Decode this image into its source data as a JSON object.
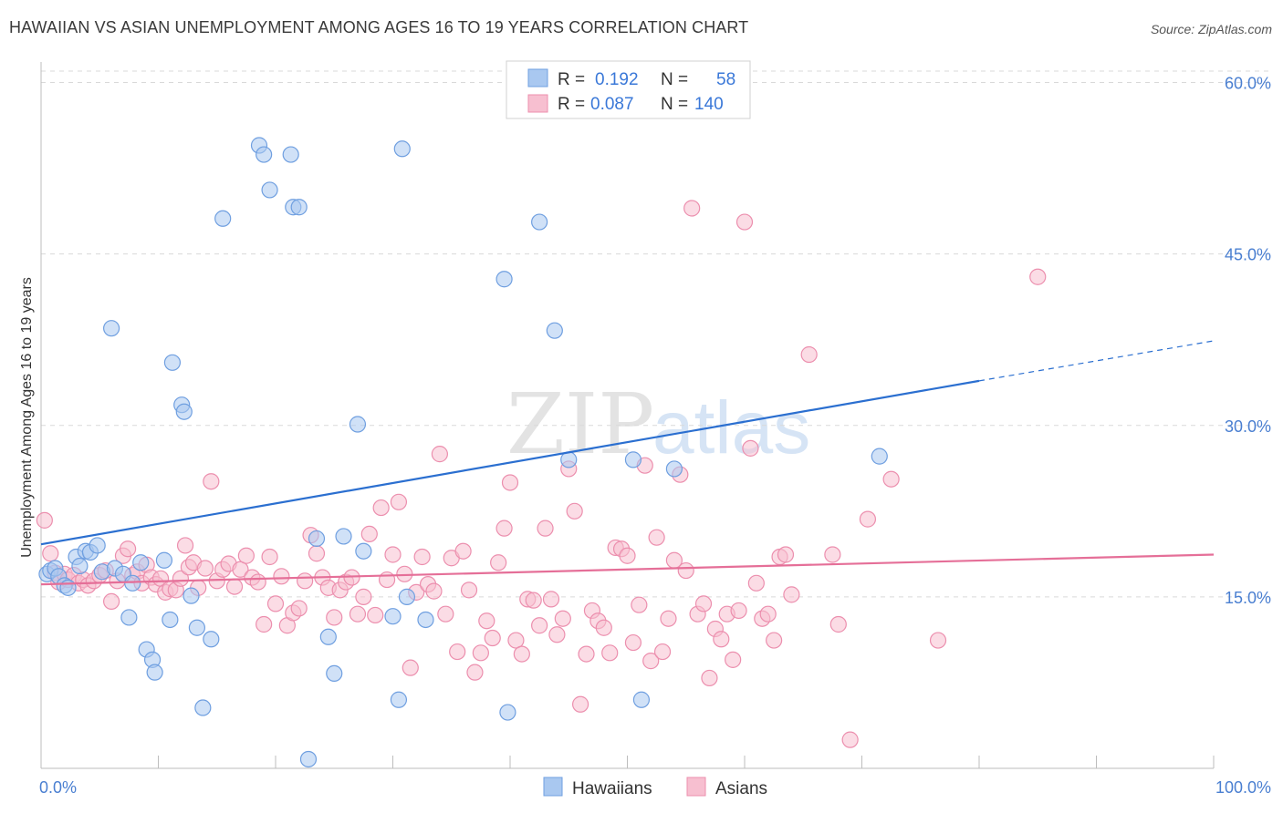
{
  "title": "HAWAIIAN VS ASIAN UNEMPLOYMENT AMONG AGES 16 TO 19 YEARS CORRELATION CHART",
  "source": "Source: ZipAtlas.com",
  "watermark": {
    "zip": "ZIP",
    "atlas": "atlas"
  },
  "colors": {
    "hawaiians_fill": "#a9c8f0",
    "hawaiians_stroke": "#6f9fe0",
    "hawaiians_line": "#2b6fd0",
    "asians_fill": "#f7bfd0",
    "asians_stroke": "#ec8fae",
    "asians_line": "#e56f98",
    "axis_label": "#4a7fd1",
    "grid": "#d9d9d9"
  },
  "legend": {
    "rows": [
      {
        "r_label": "R =",
        "r_value": "0.192",
        "n_label": "N =",
        "n_value": "58"
      },
      {
        "r_label": "R =",
        "r_value": "0.087",
        "n_label": "N =",
        "n_value": "140"
      }
    ]
  },
  "chart_data": {
    "type": "scatter",
    "title": "HAWAIIAN VS ASIAN UNEMPLOYMENT AMONG AGES 16 TO 19 YEARS CORRELATION CHART",
    "xlabel": "",
    "ylabel": "Unemployment Among Ages 16 to 19 years",
    "xlim": [
      0,
      100
    ],
    "ylim": [
      0,
      61
    ],
    "x_tick_labels": [
      "0.0%",
      "100.0%"
    ],
    "y_ticks": [
      15,
      30,
      45,
      60
    ],
    "y_tick_labels": [
      "15.0%",
      "30.0%",
      "45.0%",
      "60.0%"
    ],
    "grid": "horizontal dashed",
    "legend_position": "top-center",
    "series": [
      {
        "name": "Hawaiians",
        "r": 0.192,
        "n": 58,
        "trend": {
          "x0": 0,
          "y0": 19.6,
          "x1": 80,
          "y1": 33.9,
          "dashed_to_x": 100,
          "dashed_to_y": 37.4
        },
        "points": [
          [
            0.5,
            17.0
          ],
          [
            0.8,
            17.3
          ],
          [
            1.2,
            17.5
          ],
          [
            1.5,
            16.8
          ],
          [
            2.0,
            16.0
          ],
          [
            2.3,
            15.8
          ],
          [
            3.0,
            18.5
          ],
          [
            3.3,
            17.7
          ],
          [
            3.8,
            19.0
          ],
          [
            4.2,
            18.9
          ],
          [
            4.8,
            19.5
          ],
          [
            5.2,
            17.2
          ],
          [
            6.0,
            38.5
          ],
          [
            6.3,
            17.5
          ],
          [
            7.0,
            17.0
          ],
          [
            7.5,
            13.2
          ],
          [
            7.8,
            16.2
          ],
          [
            8.5,
            18.0
          ],
          [
            9.0,
            10.4
          ],
          [
            9.5,
            9.5
          ],
          [
            9.7,
            8.4
          ],
          [
            10.5,
            18.2
          ],
          [
            11.0,
            13.0
          ],
          [
            11.2,
            35.5
          ],
          [
            12.0,
            31.8
          ],
          [
            12.2,
            31.2
          ],
          [
            12.8,
            15.1
          ],
          [
            13.3,
            12.3
          ],
          [
            13.8,
            5.3
          ],
          [
            14.5,
            11.3
          ],
          [
            15.5,
            48.1
          ],
          [
            18.6,
            54.5
          ],
          [
            19.0,
            53.7
          ],
          [
            19.5,
            50.6
          ],
          [
            21.3,
            53.7
          ],
          [
            21.5,
            49.1
          ],
          [
            22.0,
            49.1
          ],
          [
            22.8,
            0.8
          ],
          [
            23.5,
            20.1
          ],
          [
            24.5,
            11.5
          ],
          [
            25.0,
            8.3
          ],
          [
            25.8,
            20.3
          ],
          [
            27.0,
            30.1
          ],
          [
            27.5,
            19.0
          ],
          [
            30.0,
            13.3
          ],
          [
            30.5,
            6.0
          ],
          [
            30.8,
            54.2
          ],
          [
            31.2,
            15.0
          ],
          [
            32.8,
            13.0
          ],
          [
            39.5,
            42.8
          ],
          [
            39.8,
            4.9
          ],
          [
            42.5,
            47.8
          ],
          [
            43.8,
            38.3
          ],
          [
            45.0,
            27.0
          ],
          [
            50.5,
            27.0
          ],
          [
            51.2,
            6.0
          ],
          [
            54.0,
            26.2
          ],
          [
            71.5,
            27.3
          ]
        ]
      },
      {
        "name": "Asians",
        "r": 0.087,
        "n": 140,
        "trend": {
          "x0": 0,
          "y0": 16.1,
          "x1": 100,
          "y1": 18.7
        },
        "points": [
          [
            0.3,
            21.7
          ],
          [
            0.8,
            18.8
          ],
          [
            1.2,
            17.1
          ],
          [
            1.5,
            16.3
          ],
          [
            2.0,
            17.0
          ],
          [
            2.3,
            16.5
          ],
          [
            2.8,
            16.9
          ],
          [
            3.2,
            16.2
          ],
          [
            3.6,
            16.5
          ],
          [
            4.0,
            16.0
          ],
          [
            4.5,
            16.4
          ],
          [
            5.0,
            16.9
          ],
          [
            5.5,
            17.3
          ],
          [
            6.0,
            14.6
          ],
          [
            6.5,
            16.4
          ],
          [
            7.0,
            18.6
          ],
          [
            7.4,
            19.2
          ],
          [
            7.8,
            16.9
          ],
          [
            8.2,
            17.2
          ],
          [
            8.6,
            16.2
          ],
          [
            9.0,
            17.8
          ],
          [
            9.4,
            16.7
          ],
          [
            9.8,
            16.1
          ],
          [
            10.2,
            16.6
          ],
          [
            10.6,
            15.4
          ],
          [
            11.0,
            15.7
          ],
          [
            11.5,
            15.6
          ],
          [
            11.9,
            16.6
          ],
          [
            12.3,
            19.5
          ],
          [
            12.6,
            17.6
          ],
          [
            13.0,
            18.0
          ],
          [
            13.4,
            15.8
          ],
          [
            14.0,
            17.5
          ],
          [
            14.5,
            25.1
          ],
          [
            15.0,
            16.4
          ],
          [
            15.5,
            17.4
          ],
          [
            16.0,
            17.9
          ],
          [
            16.5,
            15.9
          ],
          [
            17.0,
            17.4
          ],
          [
            17.5,
            18.6
          ],
          [
            18.0,
            16.7
          ],
          [
            18.5,
            16.3
          ],
          [
            19.0,
            12.6
          ],
          [
            19.5,
            18.5
          ],
          [
            20.0,
            14.4
          ],
          [
            20.5,
            16.8
          ],
          [
            21.0,
            12.5
          ],
          [
            21.5,
            13.6
          ],
          [
            22.0,
            14.0
          ],
          [
            22.5,
            16.4
          ],
          [
            23.0,
            20.4
          ],
          [
            23.5,
            18.8
          ],
          [
            24.0,
            16.7
          ],
          [
            24.5,
            15.8
          ],
          [
            25.0,
            13.2
          ],
          [
            25.5,
            15.6
          ],
          [
            26.0,
            16.3
          ],
          [
            26.5,
            16.7
          ],
          [
            27.0,
            13.5
          ],
          [
            27.5,
            15.0
          ],
          [
            28.0,
            20.5
          ],
          [
            28.5,
            13.4
          ],
          [
            29.0,
            22.8
          ],
          [
            29.5,
            16.5
          ],
          [
            30.0,
            18.7
          ],
          [
            30.5,
            23.3
          ],
          [
            31.0,
            17.0
          ],
          [
            31.5,
            8.8
          ],
          [
            32.0,
            15.4
          ],
          [
            32.5,
            18.5
          ],
          [
            33.0,
            16.1
          ],
          [
            33.5,
            15.5
          ],
          [
            34.0,
            27.5
          ],
          [
            34.5,
            13.5
          ],
          [
            35.0,
            18.4
          ],
          [
            35.5,
            10.2
          ],
          [
            36.0,
            19.0
          ],
          [
            36.5,
            15.6
          ],
          [
            37.0,
            8.4
          ],
          [
            37.5,
            10.1
          ],
          [
            38.0,
            12.9
          ],
          [
            38.5,
            11.4
          ],
          [
            39.0,
            18.0
          ],
          [
            39.5,
            21.0
          ],
          [
            40.0,
            25.0
          ],
          [
            40.5,
            11.2
          ],
          [
            41.0,
            10.0
          ],
          [
            41.5,
            14.8
          ],
          [
            42.0,
            14.7
          ],
          [
            42.5,
            12.5
          ],
          [
            43.0,
            21.0
          ],
          [
            43.5,
            14.8
          ],
          [
            44.0,
            11.7
          ],
          [
            44.5,
            13.1
          ],
          [
            45.0,
            26.2
          ],
          [
            45.5,
            22.5
          ],
          [
            46.0,
            5.6
          ],
          [
            46.5,
            10.0
          ],
          [
            47.0,
            13.8
          ],
          [
            47.5,
            12.9
          ],
          [
            48.0,
            12.3
          ],
          [
            48.5,
            10.1
          ],
          [
            49.0,
            19.3
          ],
          [
            49.5,
            19.2
          ],
          [
            50.0,
            18.6
          ],
          [
            50.5,
            11.0
          ],
          [
            51.0,
            14.3
          ],
          [
            51.5,
            26.5
          ],
          [
            52.0,
            9.4
          ],
          [
            52.5,
            20.2
          ],
          [
            53.0,
            10.2
          ],
          [
            53.5,
            13.1
          ],
          [
            54.0,
            18.2
          ],
          [
            54.5,
            25.7
          ],
          [
            55.0,
            17.3
          ],
          [
            55.5,
            49.0
          ],
          [
            56.0,
            13.5
          ],
          [
            56.5,
            14.4
          ],
          [
            57.0,
            7.9
          ],
          [
            57.5,
            12.2
          ],
          [
            58.0,
            11.3
          ],
          [
            58.5,
            13.5
          ],
          [
            59.0,
            9.5
          ],
          [
            59.5,
            13.8
          ],
          [
            60.0,
            47.8
          ],
          [
            60.5,
            28.0
          ],
          [
            61.0,
            16.2
          ],
          [
            61.5,
            13.1
          ],
          [
            62.0,
            13.5
          ],
          [
            62.5,
            11.2
          ],
          [
            63.0,
            18.5
          ],
          [
            63.5,
            18.7
          ],
          [
            64.0,
            15.2
          ],
          [
            65.5,
            36.2
          ],
          [
            67.5,
            18.7
          ],
          [
            68.0,
            12.6
          ],
          [
            69.0,
            2.5
          ],
          [
            70.5,
            21.8
          ],
          [
            72.5,
            25.3
          ],
          [
            76.5,
            11.2
          ],
          [
            85.0,
            43.0
          ]
        ]
      }
    ]
  },
  "bottom_legend": [
    {
      "label": "Hawaiians"
    },
    {
      "label": "Asians"
    }
  ]
}
